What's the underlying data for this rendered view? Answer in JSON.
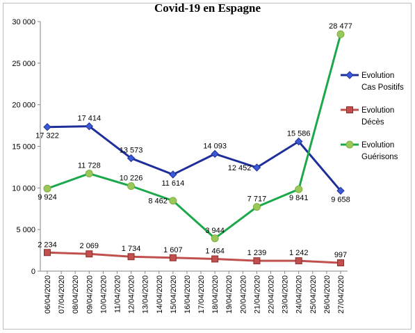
{
  "chart_data": {
    "type": "line",
    "title": "Covid-19 en Espagne",
    "x": [
      "06/04/2020",
      "07/04/2020",
      "08/04/2020",
      "09/04/2020",
      "10/04/2020",
      "11/04/2020",
      "12/04/2020",
      "13/04/2020",
      "14/04/2020",
      "15/04/2020",
      "16/04/2020",
      "17/04/2020",
      "18/04/2020",
      "19/04/2020",
      "20/04/2020",
      "21/04/2020",
      "22/04/2020",
      "23/04/2020",
      "24/04/2020",
      "25/04/2020",
      "26/04/2020",
      "27/04/2020"
    ],
    "ylim": [
      0,
      30000
    ],
    "yticks": [
      0,
      5000,
      10000,
      15000,
      20000,
      25000,
      30000
    ],
    "ytick_labels": [
      "0",
      "5 000",
      "10 000",
      "15 000",
      "20 000",
      "25 000",
      "30 000"
    ],
    "grid": false,
    "legend_position": "right",
    "series": [
      {
        "name_line1": "Evolution",
        "name_line2": "Cas Positifs",
        "color": "#1f2f9a",
        "marker": "diamond",
        "points": [
          {
            "x": "06/04/2020",
            "y": 17322,
            "label": "17 322",
            "pos": "below"
          },
          {
            "x": "09/04/2020",
            "y": 17414,
            "label": "17 414",
            "pos": "above"
          },
          {
            "x": "12/04/2020",
            "y": 13573,
            "label": "13 573",
            "pos": "above"
          },
          {
            "x": "15/04/2020",
            "y": 11614,
            "label": "11 614",
            "pos": "below"
          },
          {
            "x": "18/04/2020",
            "y": 14093,
            "label": "14 093",
            "pos": "above"
          },
          {
            "x": "21/04/2020",
            "y": 12452,
            "label": "12 452",
            "pos": "left"
          },
          {
            "x": "24/04/2020",
            "y": 15586,
            "label": "15 586",
            "pos": "above"
          },
          {
            "x": "27/04/2020",
            "y": 9658,
            "label": "9 658",
            "pos": "below"
          }
        ]
      },
      {
        "name_line1": "Evolution",
        "name_line2": "Décès",
        "color": "#c0504d",
        "marker": "square",
        "points": [
          {
            "x": "06/04/2020",
            "y": 2234,
            "label": "2 234",
            "pos": "above"
          },
          {
            "x": "09/04/2020",
            "y": 2069,
            "label": "2 069",
            "pos": "above"
          },
          {
            "x": "12/04/2020",
            "y": 1734,
            "label": "1 734",
            "pos": "above"
          },
          {
            "x": "15/04/2020",
            "y": 1607,
            "label": "1 607",
            "pos": "above"
          },
          {
            "x": "18/04/2020",
            "y": 1464,
            "label": "1 464",
            "pos": "above"
          },
          {
            "x": "21/04/2020",
            "y": 1239,
            "label": "1 239",
            "pos": "above"
          },
          {
            "x": "24/04/2020",
            "y": 1242,
            "label": "1 242",
            "pos": "above"
          },
          {
            "x": "27/04/2020",
            "y": 997,
            "label": "997",
            "pos": "above"
          }
        ]
      },
      {
        "name_line1": "Evolution",
        "name_line2": "Guérisons",
        "color": "#1aa84a",
        "marker": "circle",
        "points": [
          {
            "x": "06/04/2020",
            "y": 9924,
            "label": "9 924",
            "pos": "below"
          },
          {
            "x": "09/04/2020",
            "y": 11728,
            "label": "11 728",
            "pos": "above"
          },
          {
            "x": "12/04/2020",
            "y": 10226,
            "label": "10 226",
            "pos": "above"
          },
          {
            "x": "15/04/2020",
            "y": 8462,
            "label": "8 462",
            "pos": "left"
          },
          {
            "x": "18/04/2020",
            "y": 3944,
            "label": "3 944",
            "pos": "above"
          },
          {
            "x": "21/04/2020",
            "y": 7717,
            "label": "7 717",
            "pos": "above"
          },
          {
            "x": "24/04/2020",
            "y": 9841,
            "label": "9 841",
            "pos": "below"
          },
          {
            "x": "27/04/2020",
            "y": 28477,
            "label": "28 477",
            "pos": "above"
          }
        ]
      }
    ]
  }
}
